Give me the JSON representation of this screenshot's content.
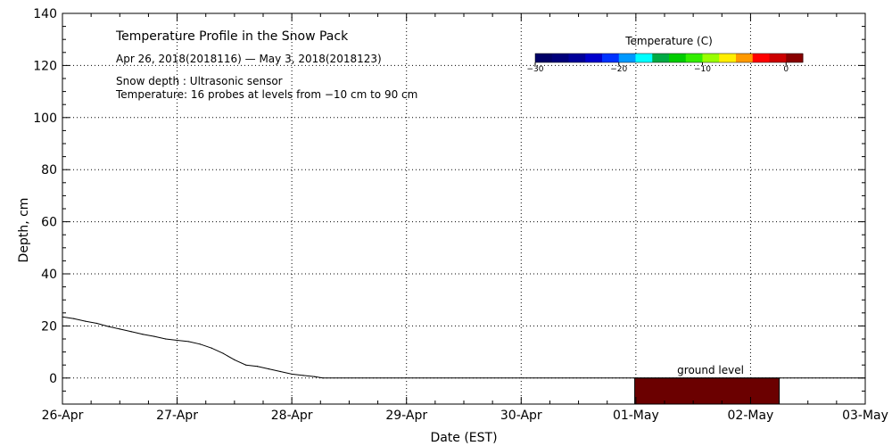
{
  "chart_data": {
    "type": "line",
    "title": "Temperature Profile in the Snow Pack",
    "subtitle": "Apr 26, 2018(2018116) — May  3, 2018(2018123)",
    "notes": [
      "Snow depth : Ultrasonic sensor",
      "Temperature: 16 probes at levels from −10 cm to 90 cm"
    ],
    "xlabel": "Date (EST)",
    "ylabel": "Depth, cm",
    "x_tick_labels": [
      "26-Apr",
      "27-Apr",
      "28-Apr",
      "29-Apr",
      "30-Apr",
      "01-May",
      "02-May",
      "03-May"
    ],
    "xlim_days": [
      0,
      7
    ],
    "ylim": [
      -10,
      140
    ],
    "y_ticks": [
      0,
      20,
      40,
      60,
      80,
      100,
      120,
      140
    ],
    "grid": true,
    "series": [
      {
        "name": "Snow depth",
        "x_days": [
          0,
          0.1,
          0.2,
          0.3,
          0.4,
          0.5,
          0.6,
          0.7,
          0.8,
          0.9,
          1.0,
          1.1,
          1.2,
          1.3,
          1.4,
          1.5,
          1.6,
          1.7,
          1.8,
          1.9,
          2.0,
          2.1,
          2.2,
          2.27,
          7.0
        ],
        "depth_cm": [
          23.5,
          22.8,
          21.8,
          21.0,
          19.8,
          18.8,
          17.8,
          16.8,
          16.0,
          15.0,
          14.5,
          14.0,
          13.0,
          11.5,
          9.5,
          7.0,
          5.0,
          4.5,
          3.5,
          2.5,
          1.5,
          1.0,
          0.5,
          0,
          0
        ]
      }
    ],
    "ground_level": {
      "label": "ground level",
      "x_start_days": 4.99,
      "x_end_days": 6.25,
      "depth_top_cm": 0,
      "depth_bottom_cm": -10,
      "color": "#6b0000"
    },
    "colorbar": {
      "title": "Temperature (C)",
      "tick_labels": [
        "−30",
        "−20",
        "−10",
        "0"
      ],
      "tick_values": [
        -30,
        -20,
        -10,
        0
      ],
      "range": [
        -30,
        2
      ],
      "colors": [
        "#000066",
        "#00007a",
        "#000099",
        "#0000cc",
        "#0033ff",
        "#0099ff",
        "#00ffff",
        "#00aa44",
        "#00cc00",
        "#33ee00",
        "#99ff00",
        "#ffee00",
        "#ff9900",
        "#ff0000",
        "#cc0000",
        "#880000"
      ]
    }
  }
}
